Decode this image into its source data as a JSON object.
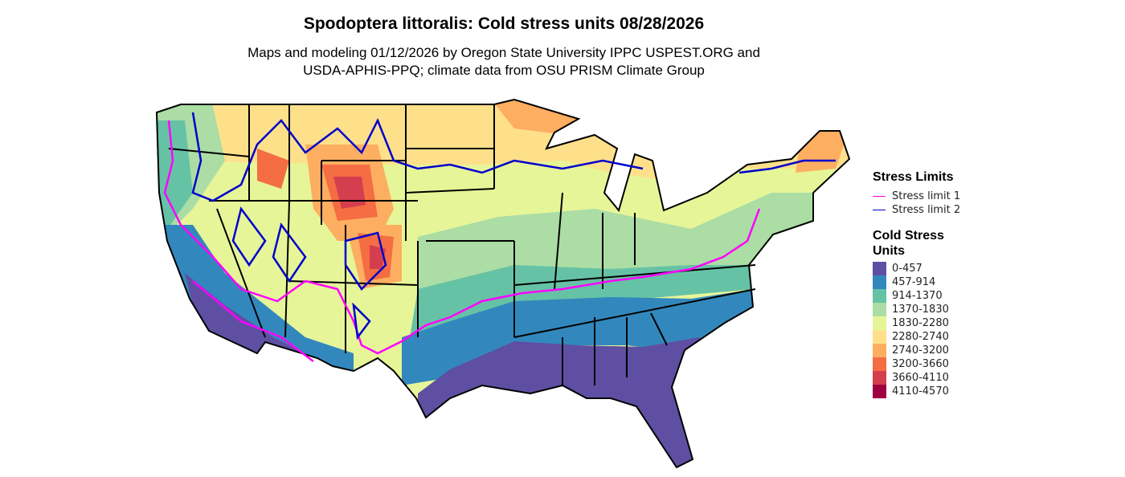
{
  "title": "Spodoptera littoralis: Cold stress units 08/28/2026",
  "subtitle_line1": "Maps and modeling 01/12/2026 by Oregon State University IPPC USPEST.ORG and",
  "subtitle_line2": "USDA-APHIS-PPQ; climate data from OSU PRISM Climate Group",
  "legend": {
    "stress_title": "Stress Limits",
    "stress_items": [
      {
        "label": "Stress limit 1",
        "color": "#FF00FF"
      },
      {
        "label": "Stress limit 2",
        "color": "#0000CC"
      }
    ],
    "units_title_line1": "Cold Stress",
    "units_title_line2": "Units",
    "bins": [
      {
        "label": "0-457",
        "color": "#5E4FA2"
      },
      {
        "label": "457-914",
        "color": "#3288BD"
      },
      {
        "label": "914-1370",
        "color": "#66C2A5"
      },
      {
        "label": "1370-1830",
        "color": "#ABDDA4"
      },
      {
        "label": "1830-2280",
        "color": "#E6F598"
      },
      {
        "label": "2280-2740",
        "color": "#FEE08B"
      },
      {
        "label": "2740-3200",
        "color": "#FDAE61"
      },
      {
        "label": "3200-3660",
        "color": "#F46D43"
      },
      {
        "label": "3660-4110",
        "color": "#D53E4F"
      },
      {
        "label": "4110-4570",
        "color": "#9E0142"
      }
    ]
  }
}
